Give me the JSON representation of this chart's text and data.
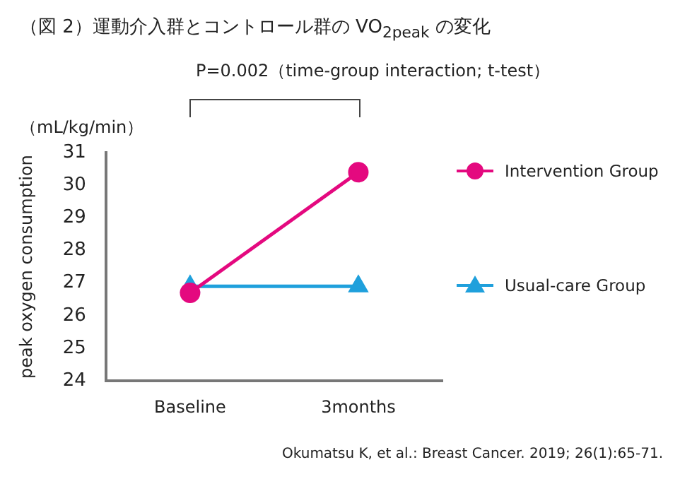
{
  "chart_data": {
    "type": "line",
    "title": "（図 2）運動介入群とコントロール群の VO$_{2peak}$ の変化",
    "ylabel": "peak oxygen consumption",
    "annotations": [
      "P=0.002（time-group interaction; t-test）",
      "（mL/kg/min）",
      "Okumatsu K, et al.: Breast Cancer. 2019; 26(1):65-71."
    ],
    "categories": [
      "Baseline",
      "3months"
    ],
    "series": [
      {
        "name": "Intervention Group",
        "color": "#e4097f",
        "values": [
          26.7,
          30.4
        ],
        "marker": "circle"
      },
      {
        "name": "Usual-care Group",
        "color": "#1fa0dc",
        "values": [
          26.9,
          26.9
        ],
        "marker": "triangle"
      }
    ],
    "ylim": [
      24,
      31
    ],
    "yticks": [
      24,
      25,
      26,
      27,
      28,
      29,
      30,
      31
    ],
    "grid": false,
    "legend": "right"
  }
}
